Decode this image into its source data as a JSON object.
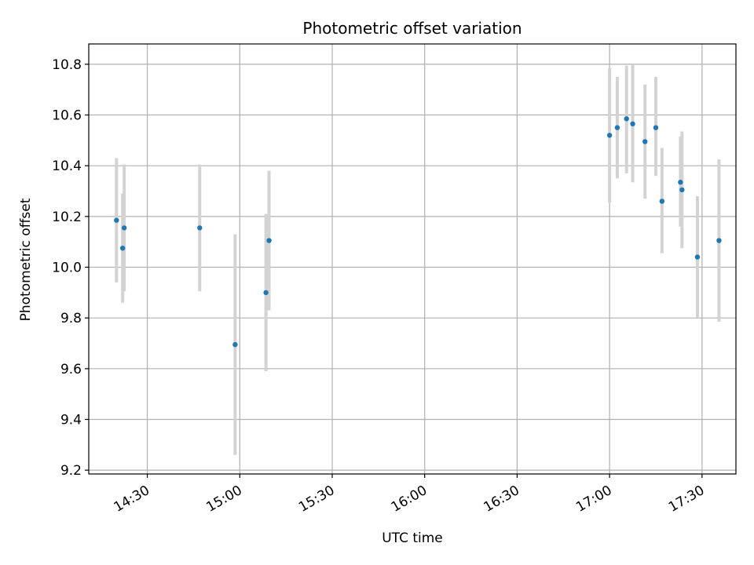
{
  "chart_data": {
    "type": "scatter",
    "title": "Photometric offset variation",
    "xlabel": "UTC time",
    "ylabel": "Photometric offset",
    "grid": true,
    "xlim": [
      "14:11",
      "17:41"
    ],
    "ylim": [
      9.185,
      10.88
    ],
    "x_ticks": [
      "14:30",
      "15:00",
      "15:30",
      "16:00",
      "16:30",
      "17:00",
      "17:30"
    ],
    "y_ticks": [
      "9.2",
      "9.4",
      "9.6",
      "9.8",
      "10.0",
      "10.2",
      "10.4",
      "10.6",
      "10.8"
    ],
    "point_color": "#1f77b4",
    "errorbar_color": "#d3d3d3",
    "series": [
      {
        "x": [
          "14:20:00",
          "14:22:00",
          "14:22:30",
          "14:47:00",
          "14:58:30",
          "15:08:30",
          "15:09:30",
          "17:00:00",
          "17:02:30",
          "17:05:30",
          "17:07:30",
          "17:11:30",
          "17:15:00",
          "17:17:00",
          "17:23:00",
          "17:23:30",
          "17:28:30",
          "17:35:30"
        ],
        "y": [
          10.185,
          10.075,
          10.155,
          10.155,
          9.695,
          9.9,
          10.105,
          10.52,
          10.55,
          10.585,
          10.565,
          10.495,
          10.55,
          10.26,
          10.335,
          10.305,
          10.04,
          10.105
        ],
        "yerr_low": [
          9.94,
          9.86,
          9.905,
          9.905,
          9.26,
          9.59,
          9.83,
          10.255,
          10.35,
          10.37,
          10.335,
          10.27,
          10.36,
          10.055,
          10.16,
          10.075,
          9.8,
          9.785
        ],
        "yerr_high": [
          10.43,
          10.29,
          10.405,
          10.405,
          10.13,
          10.21,
          10.38,
          10.785,
          10.75,
          10.795,
          10.8,
          10.72,
          10.75,
          10.47,
          10.515,
          10.535,
          10.28,
          10.425
        ]
      }
    ]
  }
}
